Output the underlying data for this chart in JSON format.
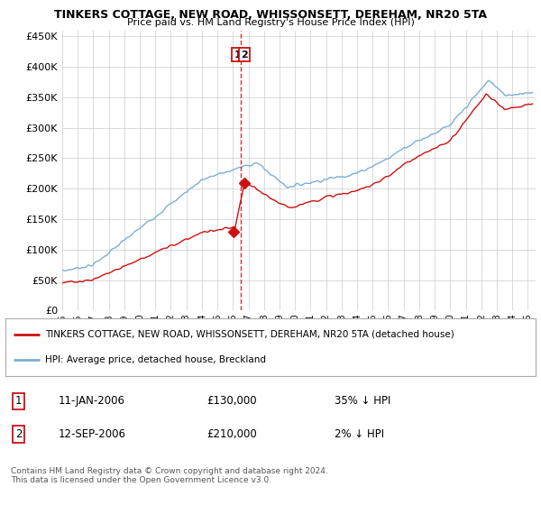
{
  "title": "TINKERS COTTAGE, NEW ROAD, WHISSONSETT, DEREHAM, NR20 5TA",
  "subtitle": "Price paid vs. HM Land Registry's House Price Index (HPI)",
  "ylabel_ticks": [
    "£0",
    "£50K",
    "£100K",
    "£150K",
    "£200K",
    "£250K",
    "£300K",
    "£350K",
    "£400K",
    "£450K"
  ],
  "ytick_values": [
    0,
    50000,
    100000,
    150000,
    200000,
    250000,
    300000,
    350000,
    400000,
    450000
  ],
  "ylim": [
    0,
    460000
  ],
  "xlim_start": 1995.0,
  "xlim_end": 2025.5,
  "hpi_color": "#7bafd4",
  "price_color": "#cc1111",
  "vline_color": "#cc1111",
  "transaction1_x": 2006.03,
  "transaction1_y": 130000,
  "transaction2_x": 2006.72,
  "transaction2_y": 210000,
  "vline_x": 2006.5,
  "legend_red_label": "TINKERS COTTAGE, NEW ROAD, WHISSONSETT, DEREHAM, NR20 5TA (detached house)",
  "legend_blue_label": "HPI: Average price, detached house, Breckland",
  "table_row1": [
    "1",
    "11-JAN-2006",
    "£130,000",
    "35% ↓ HPI"
  ],
  "table_row2": [
    "2",
    "12-SEP-2006",
    "£210,000",
    "2% ↓ HPI"
  ],
  "footnote": "Contains HM Land Registry data © Crown copyright and database right 2024.\nThis data is licensed under the Open Government Licence v3.0.",
  "background_color": "#ffffff",
  "grid_color": "#cccccc"
}
